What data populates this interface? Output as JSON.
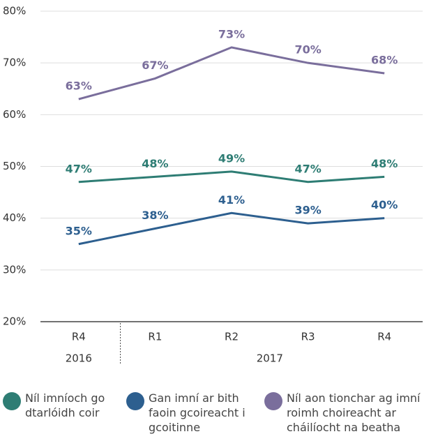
{
  "chart_data": {
    "type": "line",
    "categories": [
      "R4",
      "R1",
      "R2",
      "R3",
      "R4"
    ],
    "x_groups": [
      "2016",
      "2017"
    ],
    "series": [
      {
        "name": "Níl imníoch go dtarlóidh coir",
        "color": "#2e7d74",
        "values": [
          47,
          48,
          49,
          47,
          48
        ],
        "value_labels": [
          "47%",
          "48%",
          "49%",
          "47%",
          "48%"
        ]
      },
      {
        "name": "Gan imní ar bith faoin gcoireacht i gcoitinne",
        "color": "#2d5f8f",
        "values": [
          35,
          38,
          41,
          39,
          40
        ],
        "value_labels": [
          "35%",
          "38%",
          "41%",
          "39%",
          "40%"
        ]
      },
      {
        "name": "Níl aon tionchar ag imní roimh choireacht ar cháilíocht na beatha",
        "color": "#7a6e9c",
        "values": [
          63,
          67,
          73,
          70,
          68
        ],
        "value_labels": [
          "63%",
          "67%",
          "73%",
          "70%",
          "68%"
        ]
      }
    ],
    "ylim": [
      20,
      80
    ],
    "yticks": [
      {
        "value": 20,
        "label": "20%"
      },
      {
        "value": 30,
        "label": "30%"
      },
      {
        "value": 40,
        "label": "40%"
      },
      {
        "value": 50,
        "label": "50%"
      },
      {
        "value": 60,
        "label": "60%"
      },
      {
        "value": 70,
        "label": "70%"
      },
      {
        "value": 80,
        "label": "80%"
      }
    ],
    "grid": true
  }
}
